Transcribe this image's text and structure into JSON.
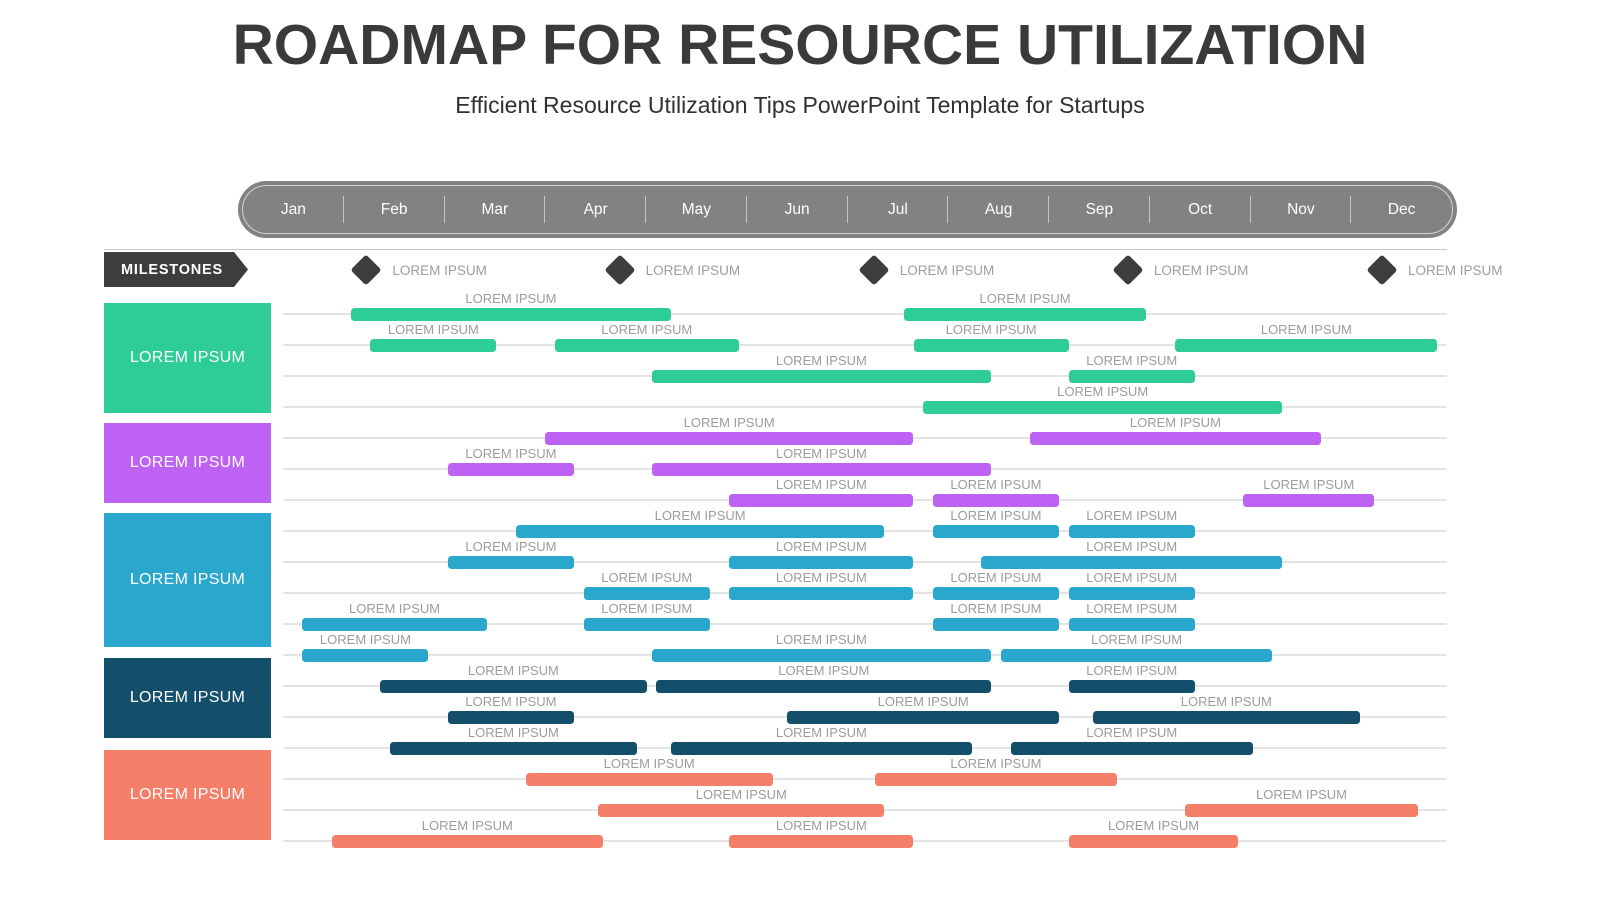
{
  "header": {
    "title": "ROADMAP FOR RESOURCE UTILIZATION",
    "subtitle": "Efficient Resource Utilization Tips PowerPoint Template for Startups"
  },
  "timeline": {
    "months": [
      "Jan",
      "Feb",
      "Mar",
      "Apr",
      "May",
      "Jun",
      "Jul",
      "Aug",
      "Sep",
      "Oct",
      "Nov",
      "Dec"
    ]
  },
  "milestones": {
    "banner_label": "MILESTONES",
    "items": [
      {
        "label": "LOREM IPSUM",
        "month": 0.86
      },
      {
        "label": "LOREM IPSUM",
        "month": 3.47
      },
      {
        "label": "LOREM IPSUM",
        "month": 6.09
      },
      {
        "label": "LOREM IPSUM",
        "month": 8.71
      },
      {
        "label": "LOREM IPSUM",
        "month": 11.33
      }
    ]
  },
  "colors": {
    "title_text": "#3a3a3a",
    "timeline_pill": "#828282",
    "milestone_dark": "#3d3d3d",
    "track_line": "#e3e3e3",
    "bar_label_text": "#9c9c9c",
    "section_green": "#2ecc96",
    "section_purple": "#bd62f2",
    "section_cyan": "#29a7cd",
    "section_navy": "#134f6b",
    "section_salmon": "#f47e68"
  },
  "chart_data": {
    "type": "gantt",
    "x_axis": {
      "unit": "month",
      "range": [
        0,
        12
      ],
      "ticks": [
        "Jan",
        "Feb",
        "Mar",
        "Apr",
        "May",
        "Jun",
        "Jul",
        "Aug",
        "Sep",
        "Oct",
        "Nov",
        "Dec"
      ]
    },
    "grid": "horizontal-tracks",
    "sections": [
      {
        "label": "LOREM IPSUM",
        "color": "#2ecc96",
        "rows": [
          [
            {
              "start": 0.7,
              "end": 4.0,
              "label": "LOREM IPSUM"
            },
            {
              "start": 6.4,
              "end": 8.9,
              "label": "LOREM IPSUM"
            }
          ],
          [
            {
              "start": 0.9,
              "end": 2.2,
              "label": "LOREM IPSUM"
            },
            {
              "start": 2.8,
              "end": 4.7,
              "label": "LOREM IPSUM"
            },
            {
              "start": 6.5,
              "end": 8.1,
              "label": "LOREM IPSUM"
            },
            {
              "start": 9.2,
              "end": 11.9,
              "label": "LOREM IPSUM"
            }
          ],
          [
            {
              "start": 3.8,
              "end": 7.3,
              "label": "LOREM IPSUM"
            },
            {
              "start": 8.1,
              "end": 9.4,
              "label": "LOREM IPSUM"
            }
          ],
          [
            {
              "start": 6.6,
              "end": 10.3,
              "label": "LOREM IPSUM"
            }
          ]
        ]
      },
      {
        "label": "LOREM IPSUM",
        "color": "#bd62f2",
        "rows": [
          [
            {
              "start": 2.7,
              "end": 6.5,
              "label": "LOREM IPSUM"
            },
            {
              "start": 7.7,
              "end": 10.7,
              "label": "LOREM IPSUM"
            }
          ],
          [
            {
              "start": 1.7,
              "end": 3.0,
              "label": "LOREM IPSUM"
            },
            {
              "start": 3.8,
              "end": 7.3,
              "label": "LOREM IPSUM"
            }
          ],
          [
            {
              "start": 4.6,
              "end": 6.5,
              "label": "LOREM IPSUM"
            },
            {
              "start": 6.7,
              "end": 8.0,
              "label": "LOREM IPSUM"
            },
            {
              "start": 9.9,
              "end": 11.25,
              "label": "LOREM IPSUM"
            }
          ]
        ]
      },
      {
        "label": "LOREM IPSUM",
        "color": "#29a7cd",
        "rows": [
          [
            {
              "start": 2.4,
              "end": 6.2,
              "label": "LOREM IPSUM"
            },
            {
              "start": 6.7,
              "end": 8.0,
              "label": "LOREM IPSUM"
            },
            {
              "start": 8.1,
              "end": 9.4,
              "label": "LOREM IPSUM"
            }
          ],
          [
            {
              "start": 1.7,
              "end": 3.0,
              "label": "LOREM IPSUM"
            },
            {
              "start": 4.6,
              "end": 6.5,
              "label": "LOREM IPSUM"
            },
            {
              "start": 7.2,
              "end": 10.3,
              "label": "LOREM IPSUM"
            }
          ],
          [
            {
              "start": 3.1,
              "end": 4.4,
              "label": "LOREM IPSUM"
            },
            {
              "start": 4.6,
              "end": 6.5,
              "label": "LOREM IPSUM"
            },
            {
              "start": 6.7,
              "end": 8.0,
              "label": "LOREM IPSUM"
            },
            {
              "start": 8.1,
              "end": 9.4,
              "label": "LOREM IPSUM"
            }
          ],
          [
            {
              "start": 0.2,
              "end": 2.1,
              "label": "LOREM IPSUM"
            },
            {
              "start": 3.1,
              "end": 4.4,
              "label": "LOREM IPSUM"
            },
            {
              "start": 6.7,
              "end": 8.0,
              "label": "LOREM IPSUM"
            },
            {
              "start": 8.1,
              "end": 9.4,
              "label": "LOREM IPSUM"
            }
          ],
          [
            {
              "start": 0.2,
              "end": 1.5,
              "label": "LOREM IPSUM"
            },
            {
              "start": 3.8,
              "end": 7.3,
              "label": "LOREM IPSUM"
            },
            {
              "start": 7.4,
              "end": 10.2,
              "label": "LOREM IPSUM"
            }
          ]
        ]
      },
      {
        "label": "LOREM IPSUM",
        "color": "#134f6b",
        "rows": [
          [
            {
              "start": 1.0,
              "end": 3.75,
              "label": "LOREM IPSUM"
            },
            {
              "start": 3.85,
              "end": 7.3,
              "label": "LOREM IPSUM"
            },
            {
              "start": 8.1,
              "end": 9.4,
              "label": "LOREM IPSUM"
            }
          ],
          [
            {
              "start": 1.7,
              "end": 3.0,
              "label": "LOREM IPSUM"
            },
            {
              "start": 5.2,
              "end": 8.0,
              "label": "LOREM IPSUM"
            },
            {
              "start": 8.35,
              "end": 11.1,
              "label": "LOREM IPSUM"
            }
          ],
          [
            {
              "start": 1.1,
              "end": 3.65,
              "label": "LOREM IPSUM"
            },
            {
              "start": 4.0,
              "end": 7.1,
              "label": "LOREM IPSUM"
            },
            {
              "start": 7.5,
              "end": 10.0,
              "label": "LOREM IPSUM"
            }
          ]
        ]
      },
      {
        "label": "LOREM IPSUM",
        "color": "#f47e68",
        "rows": [
          [
            {
              "start": 2.5,
              "end": 5.05,
              "label": "LOREM IPSUM"
            },
            {
              "start": 6.1,
              "end": 8.6,
              "label": "LOREM IPSUM"
            }
          ],
          [
            {
              "start": 3.25,
              "end": 6.2,
              "label": "LOREM IPSUM"
            },
            {
              "start": 9.3,
              "end": 11.7,
              "label": "LOREM IPSUM"
            }
          ],
          [
            {
              "start": 0.5,
              "end": 3.3,
              "label": "LOREM IPSUM"
            },
            {
              "start": 4.6,
              "end": 6.5,
              "label": "LOREM IPSUM"
            },
            {
              "start": 8.1,
              "end": 9.85,
              "label": "LOREM IPSUM"
            }
          ]
        ]
      }
    ]
  }
}
